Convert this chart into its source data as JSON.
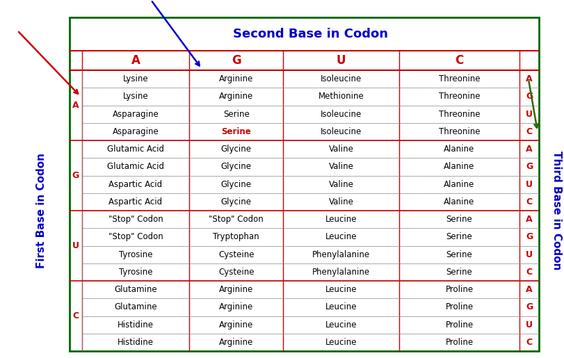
{
  "title": "Second Base in Codon",
  "col_headers": [
    "A",
    "G",
    "U",
    "C"
  ],
  "first_base_label": "First Base in Codon",
  "third_base_label": "Third Base in Codon",
  "table_data": [
    [
      "Lysine",
      "Arginine",
      "Isoleucine",
      "Threonine"
    ],
    [
      "Lysine",
      "Arginine",
      "Methionine",
      "Threonine"
    ],
    [
      "Asparagine",
      "Serine",
      "Isoleucine",
      "Threonine"
    ],
    [
      "Asparagine",
      "Serine",
      "Isoleucine",
      "Threonine"
    ],
    [
      "Glutamic Acid",
      "Glycine",
      "Valine",
      "Alanine"
    ],
    [
      "Glutamic Acid",
      "Glycine",
      "Valine",
      "Alanine"
    ],
    [
      "Aspartic Acid",
      "Glycine",
      "Valine",
      "Alanine"
    ],
    [
      "Aspartic Acid",
      "Glycine",
      "Valine",
      "Alanine"
    ],
    [
      "\"Stop\" Codon",
      "\"Stop\" Codon",
      "Leucine",
      "Serine"
    ],
    [
      "\"Stop\" Codon",
      "Tryptophan",
      "Leucine",
      "Serine"
    ],
    [
      "Tyrosine",
      "Cysteine",
      "Phenylalanine",
      "Serine"
    ],
    [
      "Tyrosine",
      "Cysteine",
      "Phenylalanine",
      "Serine"
    ],
    [
      "Glutamine",
      "Arginine",
      "Leucine",
      "Proline"
    ],
    [
      "Glutamine",
      "Arginine",
      "Leucine",
      "Proline"
    ],
    [
      "Histidine",
      "Arginine",
      "Leucine",
      "Proline"
    ],
    [
      "Histidine",
      "Arginine",
      "Leucine",
      "Proline"
    ]
  ],
  "first_base_letters": [
    "A",
    "G",
    "U",
    "C"
  ],
  "third_base_letters": [
    "A",
    "G",
    "U",
    "C"
  ],
  "special_cell_row": 3,
  "special_cell_col": 1,
  "special_color": "#cc0000",
  "header_color": "#cc0000",
  "third_col_color": "#cc0000",
  "title_color": "#0000cc",
  "label_color": "#0000cc",
  "cell_color": "#000000",
  "border_outer_color": "#006600",
  "border_inner_color": "#cc0000",
  "thin_line_color": "#888888",
  "group_line_color": "#cc0000",
  "red_arrow_color": "#cc0000",
  "blue_arrow_color": "#0000cc",
  "green_arrow_color": "#336600"
}
